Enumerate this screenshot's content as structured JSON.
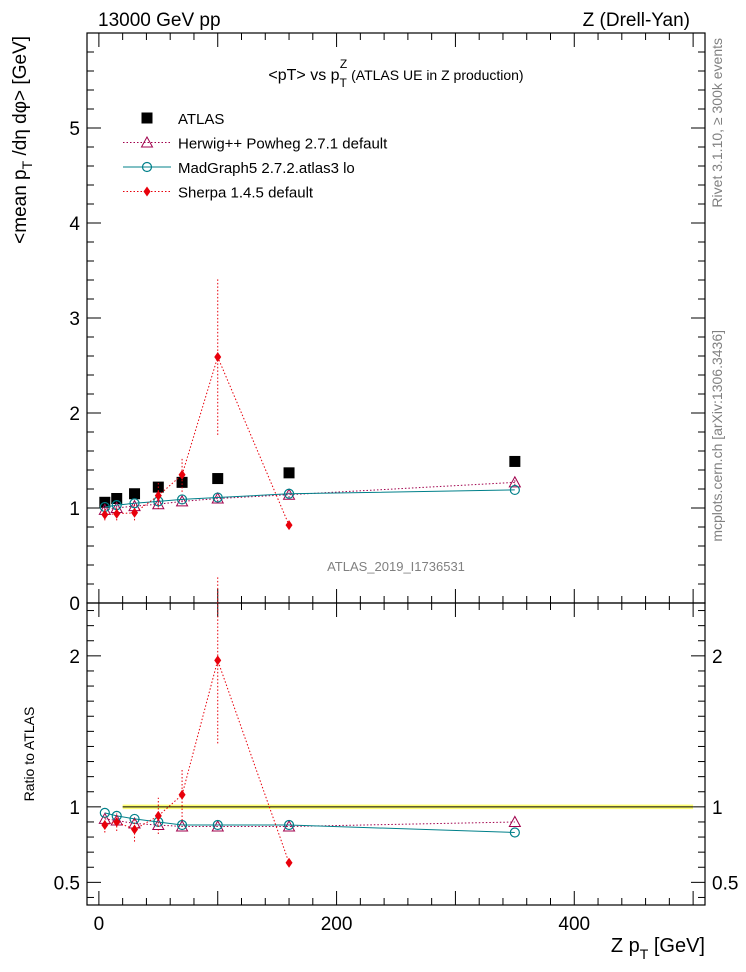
{
  "header": {
    "left": "13000 GeV pp",
    "right": "Z (Drell-Yan)"
  },
  "side": {
    "rivet": "Rivet 3.1.10, ≥ 300k events",
    "mcplots": "mcplots.cern.ch [arXiv:1306.3436]"
  },
  "chart_data": [
    {
      "type": "scatter",
      "title": "<pT> vs p_T^Z (ATLAS UE in Z production)",
      "title_parts": {
        "prefix": "<pT> vs p",
        "sub": "T",
        "sup": "Z",
        "suffix": " (ATLAS UE in Z production)"
      },
      "watermark": "ATLAS_2019_I1736531",
      "ylabel": "<mean p_T/dη dφ> [GeV]",
      "ylabel_parts": {
        "a": "<mean p",
        "sub": "T",
        "b": " /dη dφ> [GeV]"
      },
      "xlim": [
        -10,
        510
      ],
      "ylim": [
        0,
        6.0
      ],
      "yticks": [
        0,
        1,
        2,
        3,
        4,
        5
      ],
      "legend_position": "top-left",
      "x": [
        5,
        15,
        30,
        50,
        70,
        100,
        160,
        350
      ],
      "series": [
        {
          "name": "ATLAS",
          "color": "#000000",
          "marker": "square",
          "values": [
            1.06,
            1.1,
            1.15,
            1.22,
            1.27,
            1.31,
            1.37,
            1.49
          ]
        },
        {
          "name": "Herwig++ Powheg 2.7.1 default",
          "color": "#a0004c",
          "marker": "triangle-open",
          "line": "dotted",
          "values": [
            0.98,
            1.0,
            1.02,
            1.04,
            1.07,
            1.1,
            1.14,
            1.27
          ],
          "err": [
            0.03,
            0.03,
            0.03,
            0.03,
            0.03,
            0.03,
            0.03,
            0.03
          ]
        },
        {
          "name": "MadGraph5 2.7.2.atlas3 lo",
          "color": "#00808a",
          "marker": "circle-open",
          "line": "solid",
          "values": [
            1.01,
            1.03,
            1.05,
            1.07,
            1.09,
            1.11,
            1.15,
            1.19
          ]
        },
        {
          "name": "Sherpa 1.4.5 default",
          "color": "#e8000b",
          "marker": "diamond",
          "line": "dotted",
          "values": [
            0.93,
            0.94,
            0.95,
            1.13,
            1.35,
            2.59,
            0.82,
            null
          ],
          "err": [
            0.06,
            0.07,
            0.08,
            0.14,
            0.18,
            0.82,
            0.02,
            0
          ]
        }
      ]
    },
    {
      "type": "scatter",
      "ylabel": "Ratio to ATLAS",
      "xlabel": "Z p_T [GeV]",
      "xlabel_parts": {
        "a": "Z p",
        "sub": "T",
        "b": " [GeV]"
      },
      "xlim": [
        -10,
        510
      ],
      "ylim": [
        0.35,
        2.35
      ],
      "yticks": [
        0.5,
        1,
        2
      ],
      "xticks": [
        0,
        200,
        400
      ],
      "band": {
        "lo": 0.985,
        "hi": 1.015,
        "color": "#ffff66"
      },
      "x": [
        5,
        15,
        30,
        50,
        70,
        100,
        160,
        350
      ],
      "series": [
        {
          "name": "Herwig++ Powheg 2.7.1 default",
          "color": "#a0004c",
          "marker": "triangle-open",
          "line": "dotted",
          "values": [
            0.92,
            0.91,
            0.89,
            0.88,
            0.87,
            0.87,
            0.87,
            0.9
          ]
        },
        {
          "name": "MadGraph5 2.7.2.atlas3 lo",
          "color": "#00808a",
          "marker": "circle-open",
          "line": "solid",
          "values": [
            0.96,
            0.94,
            0.92,
            0.9,
            0.88,
            0.88,
            0.88,
            0.83
          ]
        },
        {
          "name": "Sherpa 1.4.5 default",
          "color": "#e8000b",
          "marker": "diamond",
          "line": "dotted",
          "values": [
            0.88,
            0.9,
            0.85,
            0.94,
            1.08,
            1.97,
            0.63,
            null
          ],
          "err": [
            0.05,
            0.06,
            0.08,
            0.12,
            0.17,
            0.55,
            0.01,
            0
          ]
        }
      ]
    }
  ]
}
